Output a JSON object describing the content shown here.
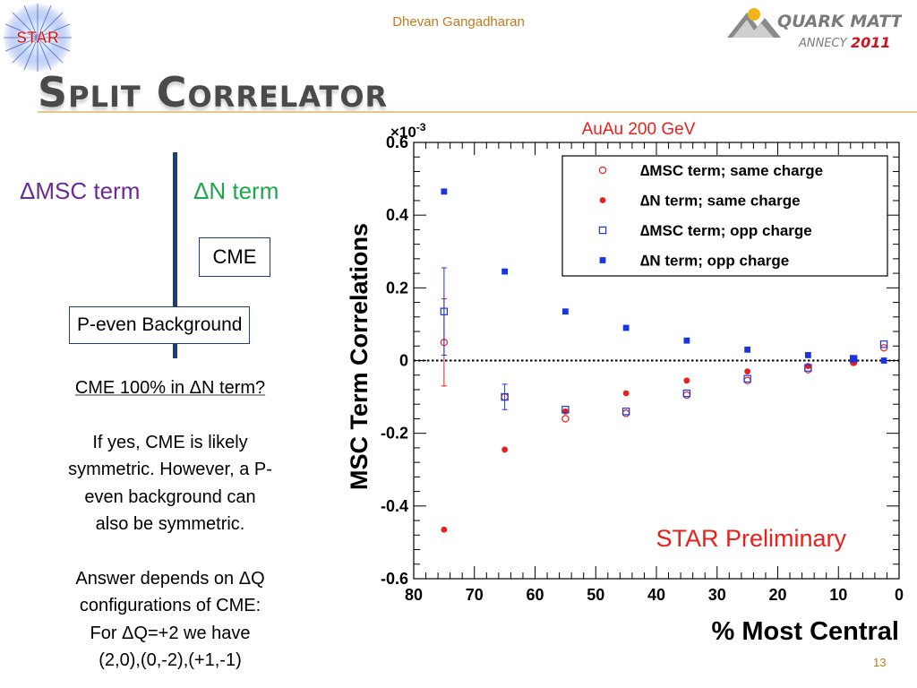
{
  "header": {
    "author": "Dhevan Gangadharan",
    "title": "Split Correlator",
    "page_number": "13",
    "star_logo_text": "STAR",
    "conference_logo": {
      "line1": "QUARK MATTER",
      "line2": "ANNECY",
      "year": "2011"
    }
  },
  "diagram": {
    "msc_term": "ΔMSC term",
    "dn_term": "ΔN term",
    "cme_label": "CME",
    "peven_label": "P-even Background"
  },
  "notes": {
    "question": "CME 100% in ΔN term?",
    "p1": [
      "If yes, CME is likely",
      "symmetric.  However, a P-",
      "even background can",
      "also be symmetric."
    ],
    "p2": [
      "Answer depends on ΔQ",
      "configurations of CME:",
      "For ΔQ=+2 we have",
      "(2,0),(0,-2),(+1,-1)"
    ]
  },
  "colors": {
    "red": "#e8201c",
    "blue": "#1836e0",
    "author": "#c07a1a",
    "term_msc": "#6b2c8f",
    "term_dn": "#1aa84a"
  },
  "chart_data": {
    "type": "scatter",
    "title": "AuAu 200 GeV",
    "watermark": "STAR Preliminary",
    "xlabel": "% Most Central",
    "ylabel": "MSC Term Correlations",
    "y_multiplier": "×10-3",
    "xlim": [
      80,
      0
    ],
    "ylim": [
      -0.6,
      0.6
    ],
    "x_ticks": [
      80,
      70,
      60,
      50,
      40,
      30,
      20,
      10,
      0
    ],
    "y_ticks": [
      -0.6,
      -0.4,
      -0.2,
      0,
      0.2,
      0.4,
      0.6
    ],
    "x_tick_labels": [
      "80",
      "70",
      "60",
      "50",
      "40",
      "30",
      "20",
      "10",
      "0"
    ],
    "y_tick_labels": [
      "-0.6",
      "-0.4",
      "-0.2",
      "0",
      "0.2",
      "0.4",
      "0.6"
    ],
    "reference_line": 0,
    "legend_position": "top-right",
    "series": [
      {
        "name": "∆MSC term; same charge",
        "marker": "open-circle",
        "color": "#e8201c",
        "x": [
          75,
          65,
          55,
          45,
          35,
          25,
          15,
          7.5,
          2.5
        ],
        "y": [
          0.05,
          -0.1,
          -0.16,
          -0.145,
          -0.095,
          -0.055,
          -0.025,
          -0.005,
          0.035
        ],
        "err": [
          0.12,
          0,
          0,
          0,
          0,
          0,
          0,
          0,
          0
        ]
      },
      {
        "name": "∆N term; same charge",
        "marker": "filled-circle",
        "color": "#e8201c",
        "x": [
          75,
          65,
          55,
          45,
          35,
          25,
          15,
          7.5,
          2.5
        ],
        "y": [
          -0.465,
          -0.245,
          -0.14,
          -0.09,
          -0.055,
          -0.03,
          -0.015,
          -0.005,
          0.0
        ]
      },
      {
        "name": "∆MSC term; opp charge",
        "marker": "open-square",
        "color": "#1836e0",
        "x": [
          75,
          65,
          55,
          45,
          35,
          25,
          15,
          7.5,
          2.5
        ],
        "y": [
          0.135,
          -0.1,
          -0.135,
          -0.14,
          -0.09,
          -0.05,
          -0.02,
          0.005,
          0.045
        ],
        "err": [
          0.12,
          0.035,
          0,
          0,
          0,
          0,
          0,
          0,
          0
        ]
      },
      {
        "name": "∆N term; opp charge",
        "marker": "filled-square",
        "color": "#1836e0",
        "x": [
          75,
          65,
          55,
          45,
          35,
          25,
          15,
          7.5,
          2.5
        ],
        "y": [
          0.465,
          0.245,
          0.135,
          0.09,
          0.055,
          0.03,
          0.015,
          0.005,
          0.0
        ]
      }
    ]
  }
}
